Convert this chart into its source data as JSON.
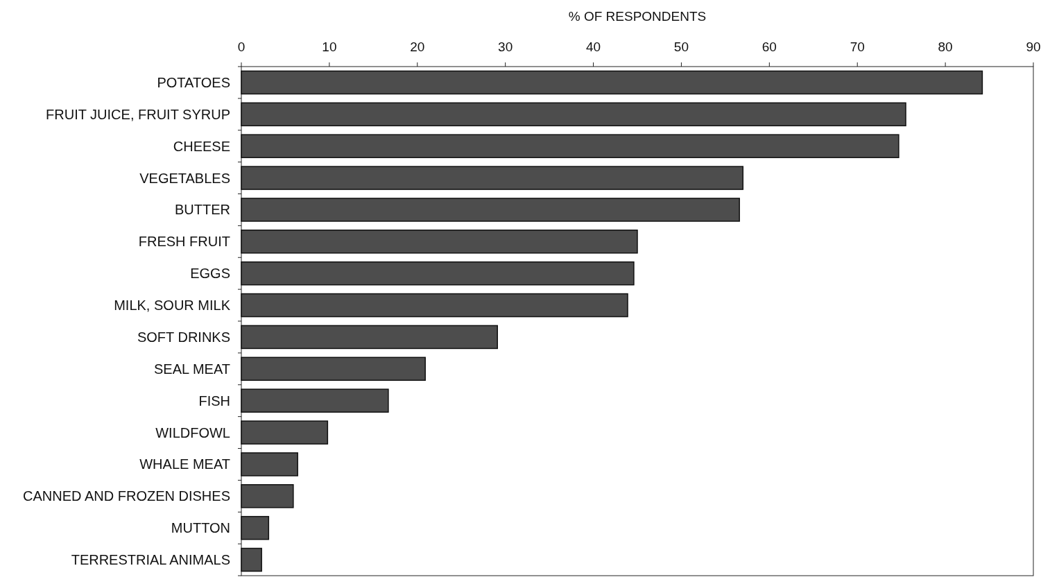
{
  "chart_data": {
    "type": "bar",
    "orientation": "horizontal",
    "xlabel": "% OF RESPONDENTS",
    "categories": [
      "POTATOES",
      "FRUIT JUICE, FRUIT SYRUP",
      "CHEESE",
      "VEGETABLES",
      "BUTTER",
      "FRESH FRUIT",
      "EGGS",
      "MILK, SOUR MILK",
      "SOFT DRINKS",
      "SEAL MEAT",
      "FISH",
      "WILDFOWL",
      "WHALE MEAT",
      "CANNED AND FROZEN DISHES",
      "MUTTON",
      "TERRESTRIAL ANIMALS"
    ],
    "values": [
      84.2,
      75.5,
      74.7,
      57.0,
      56.6,
      45.0,
      44.6,
      43.9,
      29.1,
      20.9,
      16.7,
      9.8,
      6.4,
      5.9,
      3.1,
      2.3
    ],
    "color": "#4d4d4d",
    "xlim": [
      0,
      90
    ],
    "xticks": [
      0,
      10,
      20,
      30,
      40,
      50,
      60,
      70,
      80,
      90
    ],
    "grid": false
  }
}
